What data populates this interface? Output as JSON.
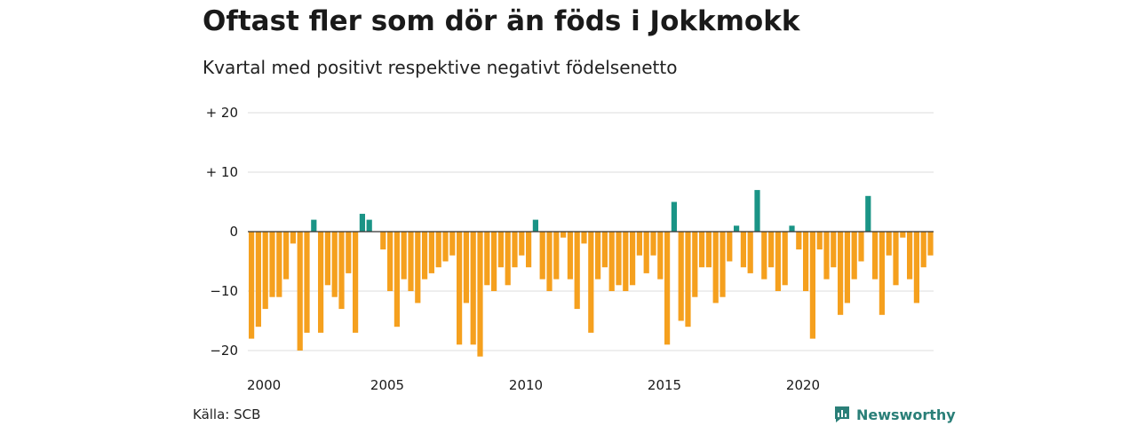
{
  "header": {
    "title": "Oftast fler som dör än föds i Jokkmokk",
    "subtitle": "Kvartal med positivt respektive negativt födelsenetto"
  },
  "footer": {
    "source": "Källa: SCB",
    "brand": "Newsworthy",
    "brand_icon": "newsworthy-logo-icon"
  },
  "colors": {
    "positive": "#1a9486",
    "negative": "#f5a01e",
    "grid": "#dddddd",
    "zero_line": "#333333"
  },
  "chart_data": {
    "type": "bar",
    "title": "Oftast fler som dör än föds i Jokkmokk",
    "subtitle": "Kvartal med positivt respektive negativt födelsenetto",
    "xlabel": "",
    "ylabel": "",
    "ylim": [
      -21,
      20
    ],
    "yticks": [
      20,
      10,
      0,
      -10,
      -20
    ],
    "ytick_labels": [
      "+ 20",
      "+ 10",
      "0",
      "−10",
      "−20"
    ],
    "x_start_year": 2000,
    "periods_per_year": 4,
    "xticks": [
      2000,
      2005,
      2010,
      2015,
      2020
    ],
    "xtick_labels": [
      "2000",
      "2005",
      "2010",
      "2015",
      "2020"
    ],
    "grid": true,
    "values": [
      -18,
      -16,
      -13,
      -11,
      -11,
      -8,
      -2,
      -20,
      -17,
      2,
      -17,
      -9,
      -11,
      -13,
      -7,
      -17,
      3,
      2,
      0,
      -3,
      -10,
      -16,
      -8,
      -10,
      -12,
      -8,
      -7,
      -6,
      -5,
      -4,
      -19,
      -12,
      -19,
      -21,
      -9,
      -10,
      -6,
      -9,
      -6,
      -4,
      -6,
      2,
      -8,
      -10,
      -8,
      -1,
      -8,
      -13,
      -2,
      -17,
      -8,
      -6,
      -10,
      -9,
      -10,
      -9,
      -4,
      -7,
      -4,
      -8,
      -19,
      5,
      -15,
      -16,
      -11,
      -6,
      -6,
      -12,
      -11,
      -5,
      1,
      -6,
      -7,
      7,
      -8,
      -6,
      -10,
      -9,
      1,
      -3,
      -10,
      -18,
      -3,
      -8,
      -6,
      -14,
      -12,
      -8,
      -5,
      6,
      -8,
      -14,
      -4,
      -9,
      -1,
      -8,
      -12,
      -6,
      -4
    ]
  }
}
